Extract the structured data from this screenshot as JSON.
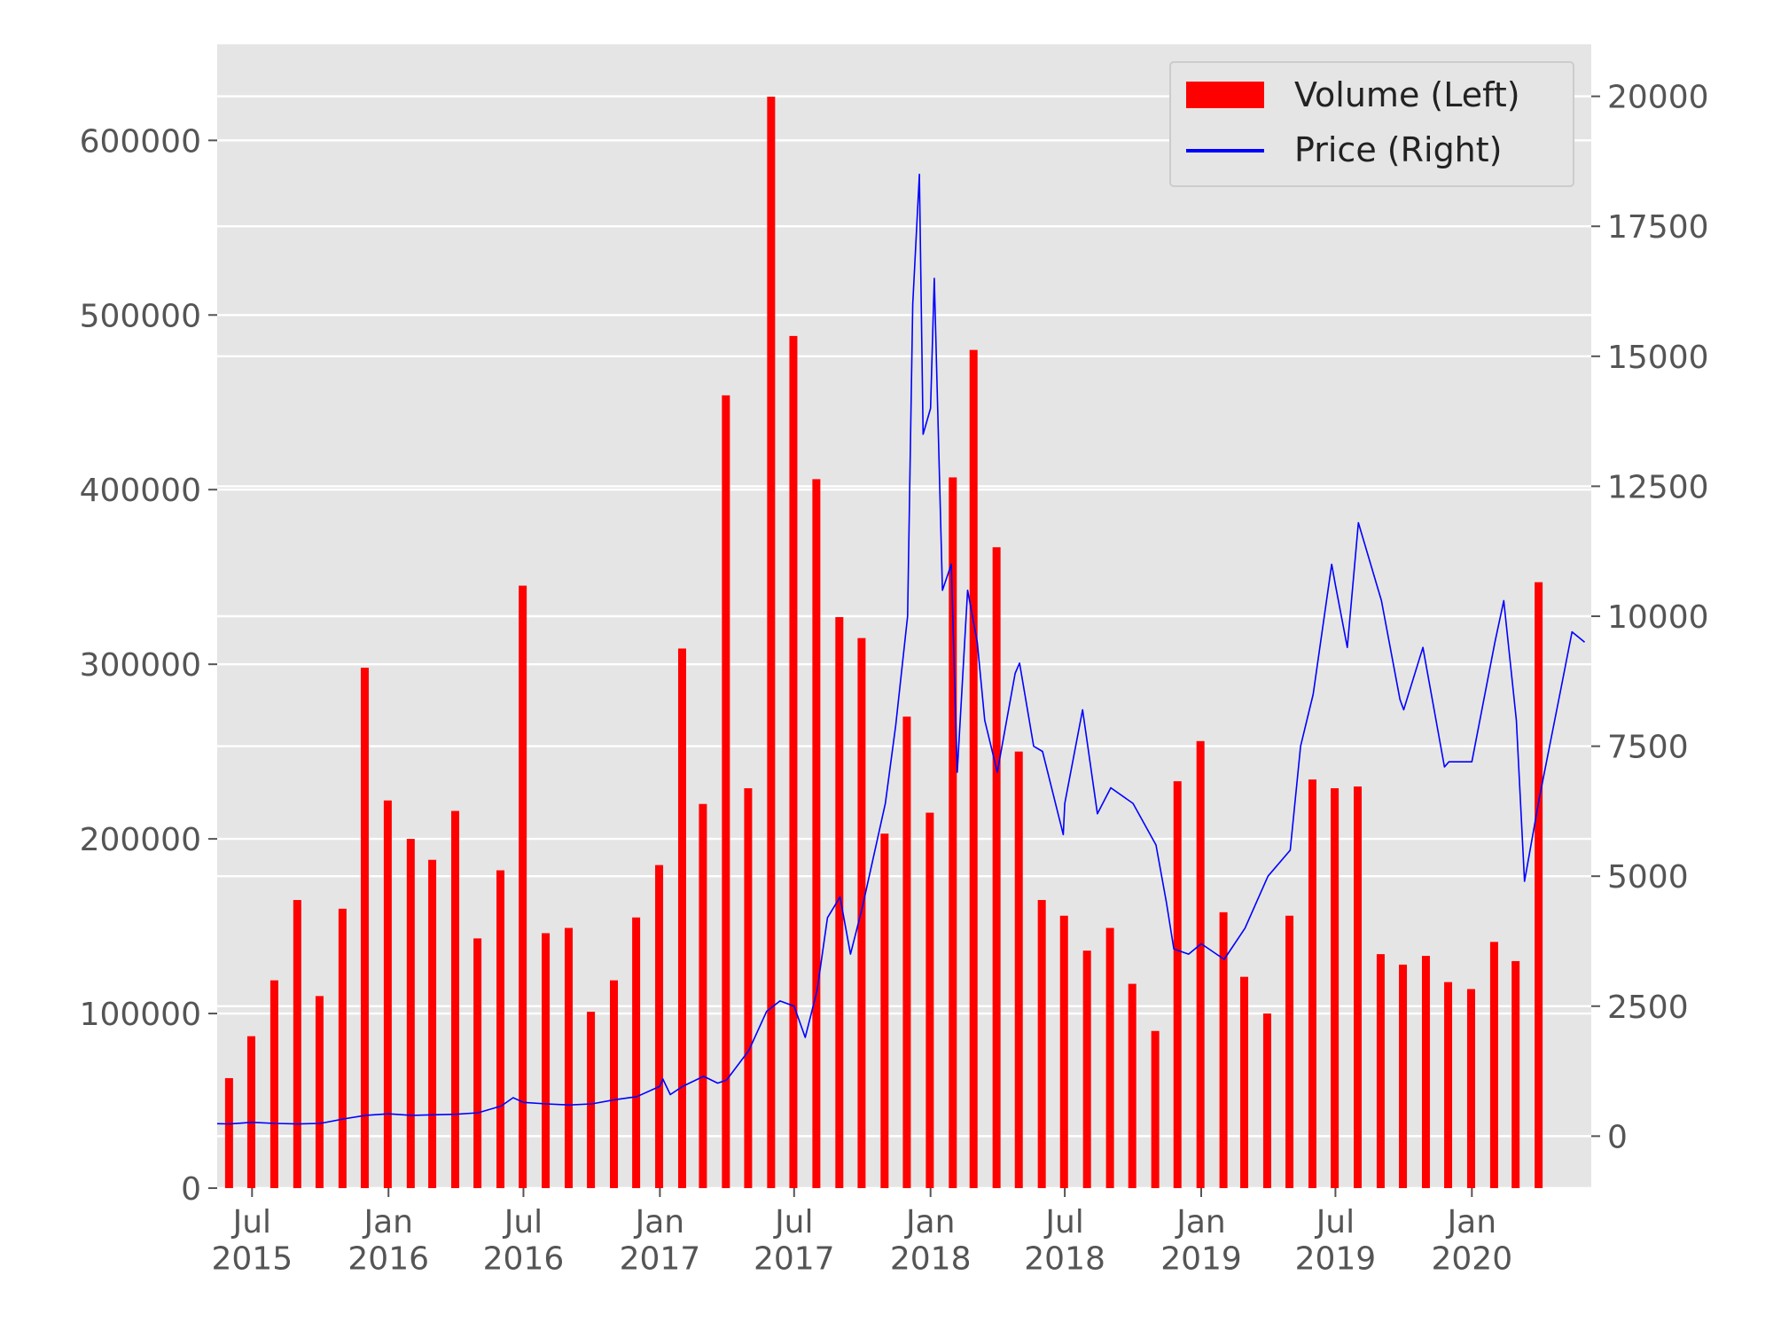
{
  "chart_data": {
    "type": "bar+line",
    "title": "",
    "xlabel": "",
    "ylabel_left": "",
    "ylabel_right": "",
    "grid": true,
    "legend_position": "top-right",
    "colors": {
      "volume": "#ff0000",
      "price": "#0000ff",
      "plot_bg": "#e5e5e5",
      "grid": "#ffffff",
      "tick": "#555555"
    },
    "x_range": [
      "2015-05-15",
      "2020-06-10"
    ],
    "x_ticks": [
      {
        "date": "2015-07-01",
        "label": "Jul\n2015"
      },
      {
        "date": "2016-01-01",
        "label": "Jan\n2016"
      },
      {
        "date": "2016-07-01",
        "label": "Jul\n2016"
      },
      {
        "date": "2017-01-01",
        "label": "Jan\n2017"
      },
      {
        "date": "2017-07-01",
        "label": "Jul\n2017"
      },
      {
        "date": "2018-01-01",
        "label": "Jan\n2018"
      },
      {
        "date": "2018-07-01",
        "label": "Jul\n2018"
      },
      {
        "date": "2019-01-01",
        "label": "Jan\n2019"
      },
      {
        "date": "2019-07-01",
        "label": "Jul\n2019"
      },
      {
        "date": "2020-01-01",
        "label": "Jan\n2020"
      }
    ],
    "left_axis": {
      "ylim": [
        0,
        655000
      ],
      "ticks": [
        0,
        100000,
        200000,
        300000,
        400000,
        500000,
        600000
      ],
      "tick_labels": [
        "0",
        "100000",
        "200000",
        "300000",
        "400000",
        "500000",
        "600000"
      ]
    },
    "right_axis": {
      "ylim": [
        -1000,
        21000
      ],
      "ticks": [
        0,
        2500,
        5000,
        7500,
        10000,
        12500,
        15000,
        17500,
        20000
      ],
      "tick_labels": [
        "0",
        "2500",
        "5000",
        "7500",
        "10000",
        "12500",
        "15000",
        "17500",
        "20000"
      ]
    },
    "series": [
      {
        "name": "Volume (Left)",
        "type": "bar",
        "dates": [
          "2015-05-31",
          "2015-06-30",
          "2015-07-31",
          "2015-08-31",
          "2015-09-30",
          "2015-10-31",
          "2015-11-30",
          "2015-12-31",
          "2016-01-31",
          "2016-02-29",
          "2016-03-31",
          "2016-04-30",
          "2016-05-31",
          "2016-06-30",
          "2016-07-31",
          "2016-08-31",
          "2016-09-30",
          "2016-10-31",
          "2016-11-30",
          "2016-12-31",
          "2017-01-31",
          "2017-02-28",
          "2017-03-31",
          "2017-04-30",
          "2017-05-31",
          "2017-06-30",
          "2017-07-31",
          "2017-08-31",
          "2017-09-30",
          "2017-10-31",
          "2017-11-30",
          "2017-12-31",
          "2018-01-31",
          "2018-02-28",
          "2018-03-31",
          "2018-04-30",
          "2018-05-31",
          "2018-06-30",
          "2018-07-31",
          "2018-08-31",
          "2018-09-30",
          "2018-10-31",
          "2018-11-30",
          "2018-12-31",
          "2019-01-31",
          "2019-02-28",
          "2019-03-31",
          "2019-04-30",
          "2019-05-31",
          "2019-06-30",
          "2019-07-31",
          "2019-08-31",
          "2019-09-30",
          "2019-10-31",
          "2019-11-30",
          "2019-12-31",
          "2020-01-31",
          "2020-02-29",
          "2020-03-31",
          "2020-04-30",
          "2020-05-31"
        ],
        "values": [
          63000,
          87000,
          119000,
          165000,
          110000,
          160000,
          298000,
          222000,
          200000,
          188000,
          216000,
          143000,
          182000,
          345000,
          146000,
          149000,
          101000,
          119000,
          155000,
          185000,
          309000,
          220000,
          454000,
          229000,
          625000,
          488000,
          406000,
          327000,
          315000,
          203000,
          270000,
          215000,
          407000,
          480000,
          367000,
          250000,
          165000,
          156000,
          136000,
          149000,
          117000,
          90000,
          233000,
          256000,
          158000,
          121000,
          100000,
          156000,
          234000,
          229000,
          230000,
          134000,
          128000,
          133000,
          118000,
          114000,
          141000,
          130000,
          347000,
          0,
          0
        ]
      },
      {
        "name": "Price (Right)",
        "type": "line",
        "dates": [
          "2015-05-15",
          "2015-06-01",
          "2015-07-01",
          "2015-08-01",
          "2015-09-01",
          "2015-10-01",
          "2015-11-01",
          "2015-12-01",
          "2016-01-01",
          "2016-02-01",
          "2016-03-01",
          "2016-04-01",
          "2016-05-01",
          "2016-06-01",
          "2016-06-17",
          "2016-07-01",
          "2016-08-01",
          "2016-09-01",
          "2016-10-01",
          "2016-11-01",
          "2016-12-01",
          "2017-01-01",
          "2017-01-05",
          "2017-01-15",
          "2017-02-01",
          "2017-03-01",
          "2017-03-20",
          "2017-04-01",
          "2017-05-01",
          "2017-05-25",
          "2017-06-12",
          "2017-07-01",
          "2017-07-16",
          "2017-08-01",
          "2017-08-15",
          "2017-09-01",
          "2017-09-15",
          "2017-10-01",
          "2017-11-01",
          "2017-11-15",
          "2017-12-01",
          "2017-12-08",
          "2017-12-17",
          "2017-12-22",
          "2018-01-01",
          "2018-01-06",
          "2018-01-17",
          "2018-01-29",
          "2018-02-06",
          "2018-02-20",
          "2018-03-05",
          "2018-03-15",
          "2018-04-01",
          "2018-04-25",
          "2018-05-01",
          "2018-05-20",
          "2018-06-01",
          "2018-06-29",
          "2018-07-01",
          "2018-07-25",
          "2018-08-14",
          "2018-09-01",
          "2018-10-01",
          "2018-11-01",
          "2018-11-15",
          "2018-11-25",
          "2018-12-15",
          "2019-01-01",
          "2019-02-01",
          "2019-03-01",
          "2019-04-01",
          "2019-05-01",
          "2019-05-15",
          "2019-06-01",
          "2019-06-26",
          "2019-07-01",
          "2019-07-17",
          "2019-08-01",
          "2019-09-01",
          "2019-09-26",
          "2019-10-01",
          "2019-10-27",
          "2019-11-01",
          "2019-11-25",
          "2019-12-01",
          "2020-01-01",
          "2020-02-01",
          "2020-02-13",
          "2020-03-01",
          "2020-03-12",
          "2020-04-01",
          "2020-04-30",
          "2020-05-15",
          "2020-06-01"
        ],
        "values": [
          240,
          235,
          265,
          245,
          235,
          245,
          330,
          400,
          430,
          400,
          410,
          420,
          450,
          580,
          740,
          650,
          620,
          600,
          620,
          700,
          760,
          960,
          1100,
          800,
          960,
          1150,
          1020,
          1080,
          1650,
          2400,
          2600,
          2500,
          1900,
          2800,
          4200,
          4600,
          3500,
          4400,
          6400,
          7900,
          10000,
          16000,
          18500,
          13500,
          14000,
          16500,
          10500,
          11000,
          7000,
          10500,
          9500,
          8000,
          7000,
          8900,
          9100,
          7500,
          7400,
          5800,
          6400,
          8200,
          6200,
          6700,
          6400,
          5600,
          4500,
          3600,
          3500,
          3700,
          3400,
          4000,
          5000,
          5500,
          7500,
          8500,
          11000,
          10600,
          9400,
          11800,
          10300,
          8400,
          8200,
          9400,
          9000,
          7100,
          7200,
          7200,
          9500,
          10300,
          8000,
          4900,
          6500,
          8600,
          9700,
          9500
        ]
      }
    ],
    "legend": {
      "entries": [
        "Volume (Left)",
        "Price (Right)"
      ]
    }
  }
}
